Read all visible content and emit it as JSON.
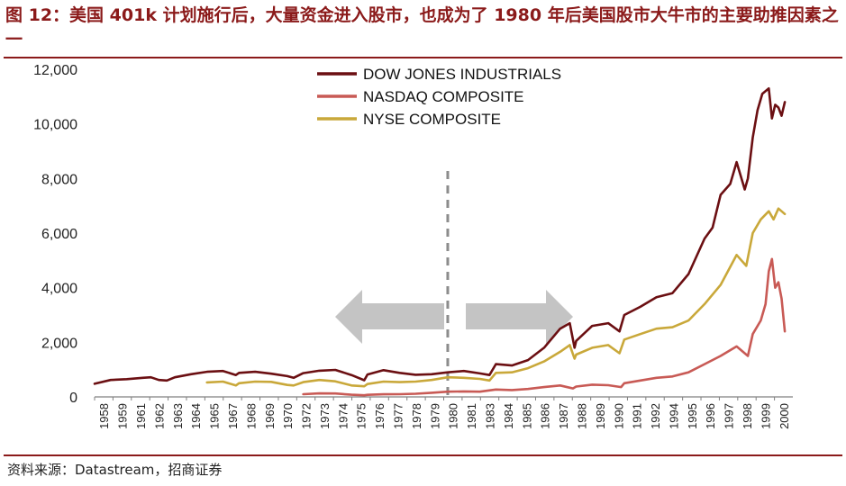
{
  "title": "图 12：美国 401k 计划施行后，大量资金进入股市，也成为了 1980 年后美国股市大牛市的主要助推因素之一",
  "source": "资料来源：Datastream，招商证券",
  "chart_data": {
    "type": "line",
    "title": "图 12：美国 401k 计划施行后，大量资金进入股市，也成为了 1980 年后美国股市大牛市的主要助推因素之一",
    "xlabel": "",
    "ylabel": "",
    "xlim": [
      1958,
      2001.5
    ],
    "ylim": [
      0,
      12000
    ],
    "yticks": [
      0,
      2000,
      4000,
      6000,
      8000,
      10000,
      12000
    ],
    "ytick_labels": [
      "0",
      "2,000",
      "4,000",
      "6,000",
      "8,000",
      "10,000",
      "12,000"
    ],
    "xtick_labels": [
      "1958",
      "1959",
      "1961",
      "1962",
      "1963",
      "1964",
      "1965",
      "1967",
      "1968",
      "1969",
      "1970",
      "1972",
      "1973",
      "1974",
      "1975",
      "1976",
      "1977",
      "1978",
      "1979",
      "1980",
      "1981",
      "1983",
      "1984",
      "1985",
      "1986",
      "1987",
      "1988",
      "1989",
      "1990",
      "1991",
      "1992",
      "1994",
      "1995",
      "1996",
      "1997",
      "1998",
      "1999",
      "2000"
    ],
    "grid": false,
    "legend_position": "top-center",
    "annotations": {
      "vertical_line_at": 1980,
      "arrows": [
        "left",
        "right"
      ]
    },
    "colors": {
      "dow": "#6b0f12",
      "nasdaq": "#c85a55",
      "nyse": "#c9a83a",
      "divider": "#8c8c8c",
      "arrow": "#c4c4c4"
    },
    "series": [
      {
        "name": "DOW JONES INDUSTRIALS",
        "key": "dow",
        "x": [
          1958,
          1959,
          1960,
          1961,
          1961.5,
          1962,
          1962.5,
          1963,
          1964,
          1965,
          1966,
          1966.8,
          1967,
          1968,
          1969,
          1970,
          1970.4,
          1971,
          1972,
          1973,
          1974,
          1974.8,
          1975,
          1976,
          1977,
          1978,
          1979,
          1980,
          1981,
          1982,
          1982.6,
          1983,
          1984,
          1985,
          1986,
          1987,
          1987.6,
          1987.9,
          1988,
          1989,
          1990,
          1990.7,
          1991,
          1992,
          1993,
          1994,
          1995,
          1996,
          1996.5,
          1997,
          1997.6,
          1998,
          1998.5,
          1998.7,
          1999,
          1999.3,
          1999.6,
          2000,
          2000.2,
          2000.4,
          2000.6,
          2000.8,
          2001
        ],
        "y": [
          480,
          620,
          650,
          700,
          720,
          620,
          600,
          720,
          830,
          920,
          950,
          800,
          880,
          920,
          850,
          760,
          700,
          870,
          960,
          990,
          800,
          610,
          820,
          980,
          880,
          810,
          830,
          900,
          950,
          860,
          800,
          1200,
          1150,
          1350,
          1800,
          2500,
          2700,
          1800,
          2050,
          2600,
          2700,
          2400,
          3000,
          3300,
          3650,
          3800,
          4500,
          5800,
          6200,
          7400,
          7800,
          8600,
          7600,
          8000,
          9500,
          10500,
          11100,
          11300,
          10200,
          10700,
          10600,
          10300,
          10800
        ]
      },
      {
        "name": "NASDAQ COMPOSITE",
        "key": "nasdaq",
        "x": [
          1971,
          1972,
          1973,
          1974,
          1974.8,
          1975,
          1976,
          1977,
          1978,
          1979,
          1980,
          1981,
          1982,
          1983,
          1984,
          1985,
          1986,
          1987,
          1987.8,
          1988,
          1989,
          1990,
          1990.8,
          1991,
          1992,
          1993,
          1994,
          1995,
          1996,
          1997,
          1998,
          1998.7,
          1999,
          1999.5,
          1999.8,
          2000,
          2000.2,
          2000.4,
          2000.6,
          2000.8,
          2001
        ],
        "y": [
          100,
          130,
          125,
          80,
          60,
          75,
          95,
          100,
          115,
          150,
          190,
          200,
          190,
          270,
          250,
          290,
          360,
          420,
          310,
          380,
          450,
          430,
          360,
          500,
          600,
          700,
          750,
          900,
          1200,
          1500,
          1850,
          1500,
          2300,
          2800,
          3400,
          4600,
          5050,
          4000,
          4200,
          3600,
          2400
        ]
      },
      {
        "name": "NYSE COMPOSITE",
        "key": "nyse",
        "x": [
          1965,
          1966,
          1966.8,
          1967,
          1968,
          1969,
          1970,
          1970.4,
          1971,
          1972,
          1973,
          1974,
          1974.8,
          1975,
          1976,
          1977,
          1978,
          1979,
          1980,
          1981,
          1982,
          1982.6,
          1983,
          1984,
          1985,
          1986,
          1987,
          1987.6,
          1987.9,
          1988,
          1989,
          1990,
          1990.7,
          1991,
          1992,
          1993,
          1994,
          1995,
          1996,
          1997,
          1998,
          1998.6,
          1999,
          1999.5,
          2000,
          2000.3,
          2000.6,
          2001
        ],
        "y": [
          530,
          560,
          420,
          500,
          560,
          550,
          440,
          420,
          540,
          620,
          570,
          420,
          390,
          470,
          560,
          540,
          560,
          620,
          720,
          700,
          660,
          600,
          880,
          900,
          1050,
          1300,
          1650,
          1900,
          1400,
          1550,
          1800,
          1900,
          1600,
          2100,
          2300,
          2500,
          2550,
          2800,
          3400,
          4100,
          5200,
          4800,
          6000,
          6500,
          6800,
          6500,
          6900,
          6700
        ]
      }
    ]
  }
}
